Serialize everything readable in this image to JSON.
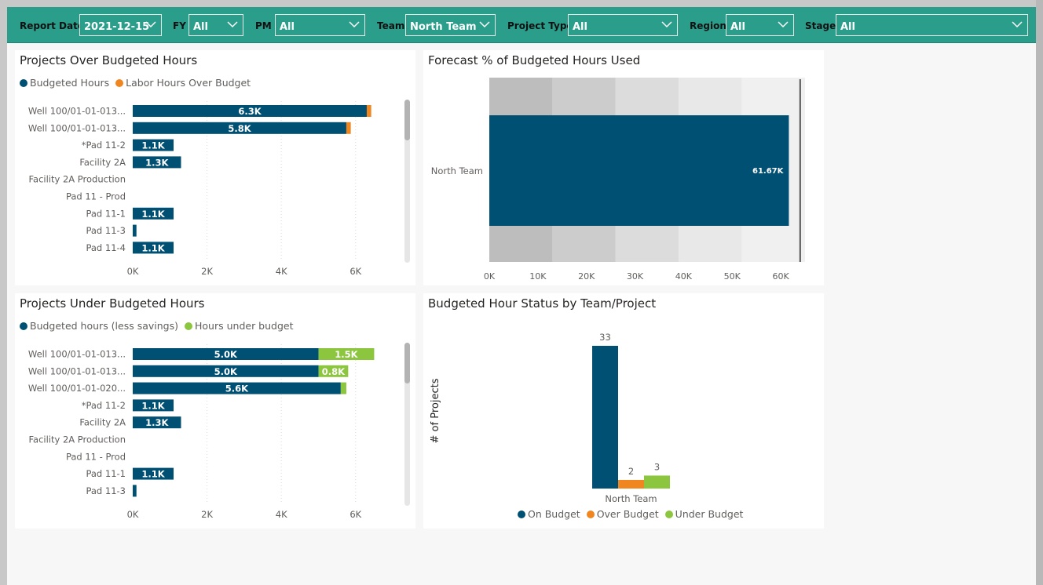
{
  "filters": [
    {
      "label": "Report Date",
      "value": "2021-12-15"
    },
    {
      "label": "FY",
      "value": "All"
    },
    {
      "label": "PM",
      "value": "All"
    },
    {
      "label": "Team",
      "value": "North Team"
    },
    {
      "label": "Project Type",
      "value": "All"
    },
    {
      "label": "Region",
      "value": "All"
    },
    {
      "label": "Stage",
      "value": "All"
    }
  ],
  "colors": {
    "navy": "#005073",
    "orange": "#f0861f",
    "green": "#8cc63e",
    "teal": "#2a9d8b"
  },
  "over": {
    "title": "Projects Over Budgeted Hours",
    "legend": [
      "Budgeted Hours",
      "Labor Hours Over Budget"
    ]
  },
  "under": {
    "title": "Projects Under Budgeted Hours",
    "legend": [
      "Budgeted hours (less savings)",
      "Hours under budget"
    ]
  },
  "forecast": {
    "title": "Forecast % of Budgeted Hours Used"
  },
  "status": {
    "title": "Budgeted Hour Status by Team/Project",
    "ylabel": "# of Projects",
    "legend": [
      "On Budget",
      "Over Budget",
      "Under Budget"
    ]
  },
  "chart_data": [
    {
      "type": "bar",
      "orientation": "horizontal",
      "stacked": true,
      "title": "Projects Over Budgeted Hours",
      "categories": [
        "Well 100/01-01-013...",
        "Well 100/01-01-013...",
        "*Pad 11-2",
        "Facility 2A",
        "Facility 2A Production",
        "Pad 11 - Prod",
        "Pad 11-1",
        "Pad 11-3",
        "Pad 11-4"
      ],
      "series": [
        {
          "name": "Budgeted Hours",
          "values": [
            6300,
            5750,
            1100,
            1300,
            0,
            0,
            1100,
            100,
            1100
          ],
          "labels": [
            "6.3K",
            "5.8K",
            "1.1K",
            "1.3K",
            "",
            "",
            "1.1K",
            "",
            "1.1K"
          ]
        },
        {
          "name": "Labor Hours Over Budget",
          "values": [
            120,
            120,
            0,
            0,
            0,
            0,
            0,
            0,
            0
          ]
        }
      ],
      "xticks": [
        "0K",
        "2K",
        "4K",
        "6K"
      ],
      "xlim": [
        0,
        7400
      ],
      "grid": true,
      "legend_position": "top-left"
    },
    {
      "type": "bar",
      "orientation": "horizontal",
      "stacked": true,
      "title": "Projects Under Budgeted Hours",
      "categories": [
        "Well 100/01-01-013...",
        "Well 100/01-01-013...",
        "Well 100/01-01-020...",
        "*Pad 11-2",
        "Facility 2A",
        "Facility 2A Production",
        "Pad 11 - Prod",
        "Pad 11-1",
        "Pad 11-3"
      ],
      "series": [
        {
          "name": "Budgeted hours (less savings)",
          "values": [
            5000,
            5000,
            5600,
            1100,
            1300,
            0,
            0,
            1100,
            100
          ],
          "labels": [
            "5.0K",
            "5.0K",
            "5.6K",
            "1.1K",
            "1.3K",
            "",
            "",
            "1.1K",
            ""
          ]
        },
        {
          "name": "Hours under budget",
          "values": [
            1500,
            800,
            150,
            0,
            0,
            0,
            0,
            0,
            0
          ],
          "labels": [
            "1.5K",
            "0.8K",
            "",
            "",
            "",
            "",
            "",
            "",
            ""
          ]
        }
      ],
      "xticks": [
        "0K",
        "2K",
        "4K",
        "6K"
      ],
      "xlim": [
        0,
        7400
      ],
      "grid": true,
      "legend_position": "top-left"
    },
    {
      "type": "bar",
      "subtype": "bullet",
      "orientation": "horizontal",
      "title": "Forecast % of Budgeted Hours Used",
      "categories": [
        "North Team"
      ],
      "value": 61670,
      "value_label": "61.67K",
      "target": 64000,
      "bands": [
        13000,
        26000,
        39000,
        52000,
        65000
      ],
      "band_colors": [
        "#bdbdbd",
        "#cccccc",
        "#dcdcdc",
        "#e8e8e8",
        "#f0f0f0"
      ],
      "xticks": [
        "0K",
        "10K",
        "20K",
        "30K",
        "40K",
        "50K",
        "60K"
      ],
      "xlim": [
        0,
        65000
      ]
    },
    {
      "type": "bar",
      "orientation": "vertical",
      "title": "Budgeted Hour Status by Team/Project",
      "ylabel": "# of Projects",
      "categories": [
        "North Team"
      ],
      "series": [
        {
          "name": "On Budget",
          "values": [
            33
          ]
        },
        {
          "name": "Over Budget",
          "values": [
            2
          ]
        },
        {
          "name": "Under Budget",
          "values": [
            3
          ]
        }
      ],
      "ylim": [
        0,
        33
      ],
      "legend_position": "bottom-center"
    }
  ]
}
